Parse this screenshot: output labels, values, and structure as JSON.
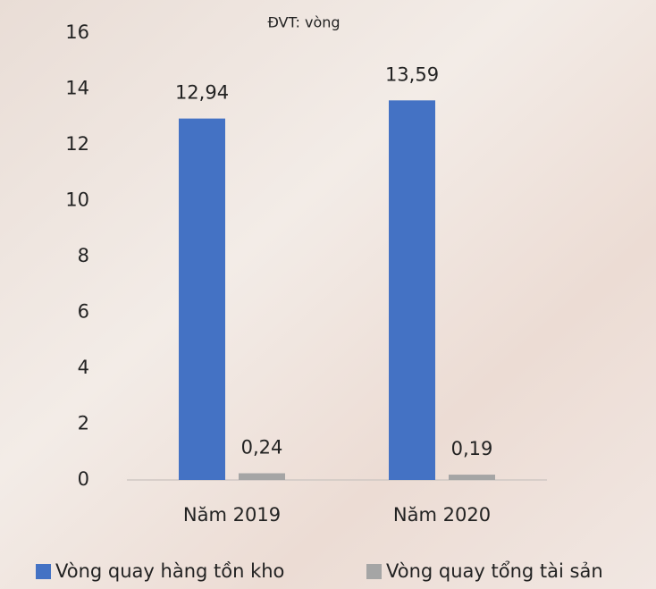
{
  "chart_data": {
    "type": "bar",
    "subtitle": "ĐVT: vòng",
    "categories": [
      "Năm 2019",
      "Năm 2020"
    ],
    "series": [
      {
        "name": "Vòng quay hàng tồn kho",
        "color": "#4472c4",
        "values": [
          12.94,
          13.59
        ],
        "value_labels": [
          "12,94",
          "13,59"
        ]
      },
      {
        "name": "Vòng quay tổng tài sản",
        "color": "#a5a5a5",
        "values": [
          0.24,
          0.19
        ],
        "value_labels": [
          "0,24",
          "0,19"
        ]
      }
    ],
    "ylim": [
      0,
      16
    ],
    "yticks": [
      0,
      2,
      4,
      6,
      8,
      10,
      12,
      14,
      16
    ],
    "grid": false
  }
}
